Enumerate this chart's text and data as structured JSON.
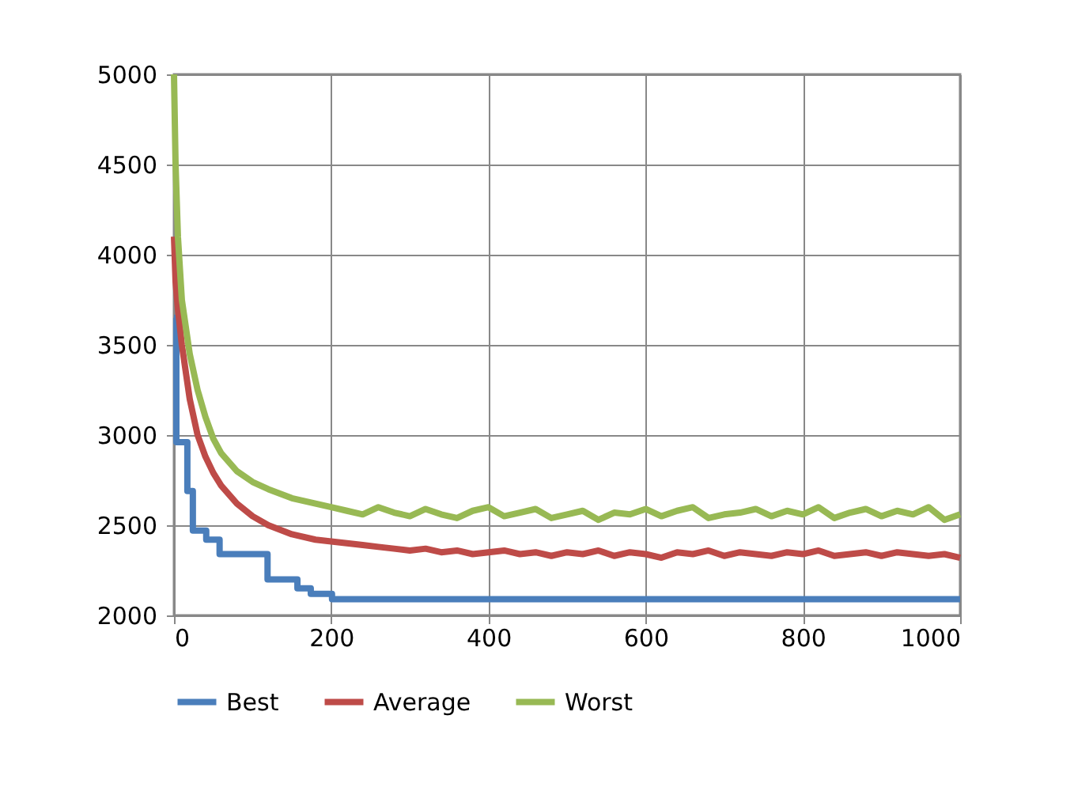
{
  "chart_data": {
    "type": "line",
    "xlim": [
      0,
      1000
    ],
    "ylim": [
      2000,
      5000
    ],
    "xticks": [
      0,
      200,
      400,
      600,
      800,
      1000
    ],
    "yticks": [
      2000,
      2500,
      3000,
      3500,
      4000,
      4500,
      5000
    ],
    "grid": true,
    "legend": "bottom",
    "line_style": "solid",
    "marker": "none",
    "series": [
      {
        "name": "Best",
        "color": "#4a7ebb",
        "type": "step",
        "x": [
          0,
          3,
          17,
          24,
          41,
          58,
          119,
          157,
          174,
          201,
          1000
        ],
        "values": [
          3650,
          2960,
          2690,
          2470,
          2420,
          2340,
          2200,
          2150,
          2120,
          2090,
          2090
        ]
      },
      {
        "name": "Average",
        "color": "#be4b48",
        "x": [
          0,
          2,
          5,
          10,
          20,
          30,
          40,
          50,
          60,
          80,
          100,
          120,
          150,
          180,
          200,
          220,
          240,
          260,
          280,
          300,
          320,
          340,
          360,
          380,
          400,
          420,
          440,
          460,
          480,
          500,
          520,
          540,
          560,
          580,
          600,
          620,
          640,
          660,
          680,
          700,
          720,
          740,
          760,
          780,
          800,
          820,
          840,
          860,
          880,
          900,
          920,
          940,
          960,
          980,
          1000
        ],
        "values": [
          4100,
          3850,
          3700,
          3500,
          3200,
          3000,
          2880,
          2790,
          2720,
          2620,
          2550,
          2500,
          2450,
          2420,
          2410,
          2400,
          2390,
          2380,
          2370,
          2360,
          2370,
          2350,
          2360,
          2340,
          2350,
          2360,
          2340,
          2350,
          2330,
          2350,
          2340,
          2360,
          2330,
          2350,
          2340,
          2320,
          2350,
          2340,
          2360,
          2330,
          2350,
          2340,
          2330,
          2350,
          2340,
          2360,
          2330,
          2340,
          2350,
          2330,
          2350,
          2340,
          2330,
          2340,
          2320
        ]
      },
      {
        "name": "Worst",
        "color": "#98b954",
        "x": [
          0,
          2,
          5,
          10,
          20,
          30,
          40,
          50,
          60,
          80,
          100,
          120,
          150,
          180,
          200,
          220,
          240,
          260,
          280,
          300,
          320,
          340,
          360,
          380,
          400,
          420,
          440,
          460,
          480,
          500,
          520,
          540,
          560,
          580,
          600,
          620,
          640,
          660,
          680,
          700,
          720,
          740,
          760,
          780,
          800,
          820,
          840,
          860,
          880,
          900,
          920,
          940,
          960,
          980,
          1000
        ],
        "values": [
          5000,
          4500,
          4100,
          3750,
          3450,
          3250,
          3100,
          2980,
          2900,
          2800,
          2740,
          2700,
          2650,
          2620,
          2600,
          2580,
          2560,
          2600,
          2570,
          2550,
          2590,
          2560,
          2540,
          2580,
          2600,
          2550,
          2570,
          2590,
          2540,
          2560,
          2580,
          2530,
          2570,
          2560,
          2590,
          2550,
          2580,
          2600,
          2540,
          2560,
          2570,
          2590,
          2550,
          2580,
          2560,
          2600,
          2540,
          2570,
          2590,
          2550,
          2580,
          2560,
          2600,
          2530,
          2560
        ]
      }
    ]
  }
}
